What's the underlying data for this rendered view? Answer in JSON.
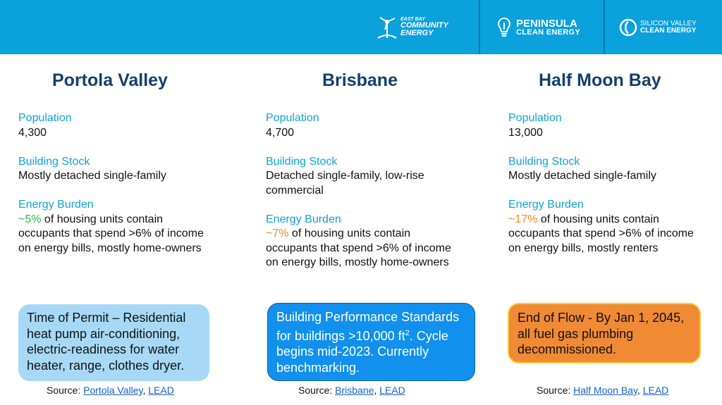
{
  "logos": {
    "ebce": {
      "line1": "EAST BAY",
      "line2": "COMMUNITY",
      "line3": "ENERGY"
    },
    "pce": {
      "line1": "PENINSULA",
      "line2": "CLEAN ENERGY"
    },
    "svce": {
      "line1": "SILICON VALLEY",
      "line2": "CLEAN ENERGY"
    }
  },
  "columns": [
    {
      "title": "Portola Valley",
      "population_label": "Population",
      "population": "4,300",
      "stock_label": "Building Stock",
      "stock": "Mostly detached single-family",
      "burden_label": "Energy Burden",
      "burden_pct": "~5%",
      "burden_line1": " of housing units contain",
      "burden_line2": "occupants that spend >6% of income",
      "burden_line3": "on energy bills, mostly home-owners",
      "callout": "Time of Permit – Residential heat pump air-conditioning, electric-readiness for water heater, range, clothes dryer.",
      "source_label": "Source: ",
      "source_link1": "Portola Valley",
      "source_sep": ", ",
      "source_link2": "LEAD"
    },
    {
      "title": "Brisbane",
      "population_label": "Population",
      "population": "4,700",
      "stock_label": "Building Stock",
      "stock_line1": "Detached single-family, low-rise",
      "stock_line2": "commercial",
      "burden_label": "Energy Burden",
      "burden_pct": "~7%",
      "burden_line1": " of housing units contain",
      "burden_line2": "occupants that spend >6% of income",
      "burden_line3": "on energy bills, mostly home-owners",
      "callout_part1": "Building Performance Standards for buildings >10,000 ft",
      "callout_sup": "2",
      "callout_part2": ". Cycle begins mid-2023. Currently benchmarking.",
      "source_label": "Source: ",
      "source_link1": "Brisbane",
      "source_sep": ", ",
      "source_link2": "LEAD"
    },
    {
      "title": "Half Moon Bay",
      "population_label": "Population",
      "population": "13,000",
      "stock_label": "Building Stock",
      "stock": "Mostly detached single-family",
      "burden_label": "Energy Burden",
      "burden_pct": "~17%",
      "burden_line1": " of housing units contain",
      "burden_line2": "occupants that spend >6% of income",
      "burden_line3": "on energy bills, mostly renters",
      "callout": "End of Flow - By Jan 1, 2045, all fuel gas plumbing decommissioned.",
      "source_label": "Source: ",
      "source_link1": "Half Moon Bay",
      "source_sep": ", ",
      "source_link2": "LEAD"
    }
  ],
  "colors": {
    "header": "#0aa1dd",
    "title": "#143f6b",
    "label": "#11a2d4",
    "green": "#2db34a",
    "orange": "#f08a24"
  },
  "icons": [
    "wind-turbine-icon",
    "lightbulb-icon",
    "swirl-logo-icon"
  ]
}
